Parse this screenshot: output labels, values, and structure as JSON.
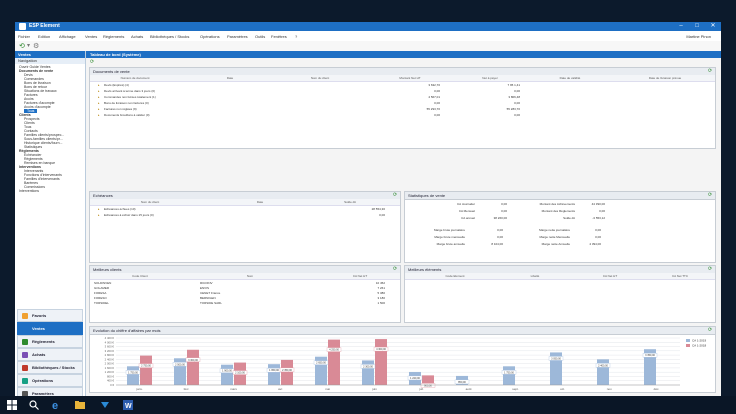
{
  "window": {
    "title": "ESP Element"
  },
  "menu": {
    "items": [
      "Fichier",
      "Edition",
      "Affichage",
      "Ventes",
      "Règlements",
      "Achats",
      "Bibliothèques / Stocks",
      "Opérations",
      "Paramètres",
      "Outils",
      "Fenêtres",
      "?"
    ],
    "user": "Martine Pinon"
  },
  "sidebar": {
    "header": "Ventes",
    "nav_label": "Navigation",
    "tree": [
      {
        "label": "Ouvrir Guide Ventes",
        "level": 1,
        "type": "item"
      },
      {
        "label": "Documents de vente",
        "level": 1,
        "type": "group"
      },
      {
        "label": "Devis",
        "level": 2,
        "type": "item"
      },
      {
        "label": "Commandes",
        "level": 2,
        "type": "item"
      },
      {
        "label": "Bons de livraison",
        "level": 2,
        "type": "item"
      },
      {
        "label": "Bons de retour",
        "level": 2,
        "type": "item"
      },
      {
        "label": "Situations de travaux",
        "level": 2,
        "type": "item"
      },
      {
        "label": "Factures",
        "level": 2,
        "type": "item"
      },
      {
        "label": "Avoirs",
        "level": 2,
        "type": "item"
      },
      {
        "label": "Factures d'acompte",
        "level": 2,
        "type": "item"
      },
      {
        "label": "Avoirs d'acompte",
        "level": 2,
        "type": "item"
      },
      {
        "label": "Tous",
        "level": 2,
        "type": "selected"
      },
      {
        "label": "Clients",
        "level": 1,
        "type": "group"
      },
      {
        "label": "Prospects",
        "level": 2,
        "type": "item"
      },
      {
        "label": "Clients",
        "level": 2,
        "type": "item"
      },
      {
        "label": "Tous",
        "level": 2,
        "type": "item"
      },
      {
        "label": "Contacts",
        "level": 2,
        "type": "item"
      },
      {
        "label": "Familles clients/prospec...",
        "level": 2,
        "type": "item"
      },
      {
        "label": "Sous-familles clients/pr...",
        "level": 2,
        "type": "item"
      },
      {
        "label": "Historique clients/fourn...",
        "level": 2,
        "type": "item"
      },
      {
        "label": "Statistiques",
        "level": 2,
        "type": "item"
      },
      {
        "label": "Règlements",
        "level": 1,
        "type": "group"
      },
      {
        "label": "Echéancier",
        "level": 2,
        "type": "item"
      },
      {
        "label": "Règlements",
        "level": 2,
        "type": "item"
      },
      {
        "label": "Remises en banque",
        "level": 2,
        "type": "item"
      },
      {
        "label": "Interventions",
        "level": 1,
        "type": "group"
      },
      {
        "label": "Intervenants",
        "level": 2,
        "type": "item"
      },
      {
        "label": "Fonctions d'intervenants",
        "level": 2,
        "type": "item"
      },
      {
        "label": "Familles d'intervenants",
        "level": 2,
        "type": "item"
      },
      {
        "label": "Barèmes",
        "level": 2,
        "type": "item"
      },
      {
        "label": "Commissions",
        "level": 2,
        "type": "item"
      },
      {
        "label": "Interventions",
        "level": 1,
        "type": "item"
      }
    ],
    "modules": [
      "Favoris",
      "Ventes",
      "Règlements",
      "Achats",
      "Bibliothèques / Stocks",
      "Opérations",
      "Paramètres"
    ],
    "module_active": "Ventes"
  },
  "main": {
    "title": "Tableau de bord (Système)"
  },
  "docs": {
    "title": "Documents de vente",
    "columns": [
      "Numéro de document",
      "Date",
      "Nom du client",
      "Montant Net HT",
      "Net à payer",
      "Date de validité",
      "Date de livraison prévue"
    ],
    "rows": [
      {
        "label": "Devis (Expirés) (4)",
        "ht": "3 632,70",
        "net": "7 95 1,41"
      },
      {
        "label": "Devis arrivant à terme dans 3 jours (0)",
        "ht": "0,00",
        "net": "0,00"
      },
      {
        "label": "Commandes non livrées totalement (1)",
        "ht": "4 567,01",
        "net": "3 806,48"
      },
      {
        "label": "Bons de livraison non facturés (0)",
        "ht": "0,00",
        "net": "0,00"
      },
      {
        "label": "Factures non réglées (9)",
        "ht": "55 293,70",
        "net": "55 283,70"
      },
      {
        "label": "Documents brouillons à valider (0)",
        "ht": "0,00",
        "net": "0,00"
      }
    ]
  },
  "echeances": {
    "title": "Echéances",
    "columns": [
      "Nom du client",
      "Date",
      "Solde dû"
    ],
    "rows": [
      {
        "label": "Echéances échues (10)",
        "value": "28 554,30"
      },
      {
        "label": "Echéances à échoir dans 15 jours (0)",
        "value": "0,00"
      }
    ]
  },
  "stats": {
    "title": "Statistiques de vente",
    "left": [
      {
        "label": "CA Journalier",
        "value": "0,00"
      },
      {
        "label": "CA Mensuel",
        "value": "0,00"
      },
      {
        "label": "CA annuel",
        "value": "38 260,00"
      }
    ],
    "right": [
      {
        "label": "Montant des Achèvements",
        "value": "44 390,00"
      },
      {
        "label": "Montant des Règlements",
        "value": "0,00"
      },
      {
        "label": "Solde dû",
        "value": "-3 553,12"
      }
    ],
    "marge_left": [
      {
        "label": "Marge brute journalière",
        "value": "0,00"
      },
      {
        "label": "Marge brute mensuelle",
        "value": "0,00"
      },
      {
        "label": "Marge brute annuelle",
        "value": "8 104,00"
      }
    ],
    "marge_right": [
      {
        "label": "Marge nette journalière",
        "value": "0,00"
      },
      {
        "label": "Marge nette Mensuelle",
        "value": "0,00"
      },
      {
        "label": "Marge nette Annuelle",
        "value": "4 394,00"
      }
    ]
  },
  "clients": {
    "title": "Meilleurs clients",
    "columns": [
      "Code Client",
      "Nom",
      "CA Net HT"
    ],
    "rows": [
      {
        "code": "SOLDINVEN",
        "name": "RICOINV",
        "ca": "10 452"
      },
      {
        "code": "GOLAMER",
        "name": "ENVIS",
        "ca": "7 261"
      },
      {
        "code": "FORESA",
        "name": "CENET France",
        "ca": "5 380"
      },
      {
        "code": "FORESO",
        "name": "BERNIGEN",
        "ca": "3 180"
      },
      {
        "code": "TORSIDEL",
        "name": "TORSIDE SARL",
        "ca": "1 500"
      }
    ]
  },
  "elements": {
    "title": "Meilleurs éléments",
    "columns": [
      "Code Elément",
      "Libellé",
      "CA Net HT",
      "CA Net TTC"
    ]
  },
  "chart_data": {
    "type": "bar",
    "title": "Evolution du chiffre d'affaires par mois",
    "categories": [
      "janv.",
      "févr.",
      "mars",
      "avr.",
      "mai",
      "juin",
      "juil.",
      "août",
      "sept.",
      "oct.",
      "nov.",
      "déc."
    ],
    "ylim": [
      0,
      4400
    ],
    "ytick_labels": [
      "0 €",
      "400 €",
      "800 €",
      "1 200 €",
      "1 600 €",
      "2 000 €",
      "2 400 €",
      "2 800 €",
      "3 200 €",
      "3 600 €",
      "4 000 €",
      "4 400 €"
    ],
    "series": [
      {
        "name": "CA 1-2019",
        "color": "#9db8d9",
        "values": [
          1750,
          2500,
          1900,
          1950,
          2650,
          2300,
          1220,
          850,
          1750,
          3050,
          2400,
          3350
        ]
      },
      {
        "name": "CA 1-2018",
        "color": "#d98a96",
        "values": [
          2750,
          3300,
          2100,
          2350,
          4250,
          4300,
          900,
          0,
          0,
          0,
          0,
          0
        ]
      }
    ],
    "value_labels_2019": [
      "1 750,00",
      "2 500,00",
      "1 900,00",
      "1 950,00",
      "2 650,00",
      "2 300,00",
      "1 220,00",
      "850,00",
      "1 750,00",
      "3 050,00",
      "2 400,00",
      "3 350,00"
    ],
    "value_labels_2018": [
      "2 750,00",
      "3 300,00",
      "2 100,00",
      "2 350,00",
      "4 250,00",
      "4 300,00",
      "900,00",
      "",
      "",
      "",
      "",
      ""
    ]
  },
  "colors": {
    "accent": "#1e6fc4",
    "taskbar": "#0a1626"
  }
}
